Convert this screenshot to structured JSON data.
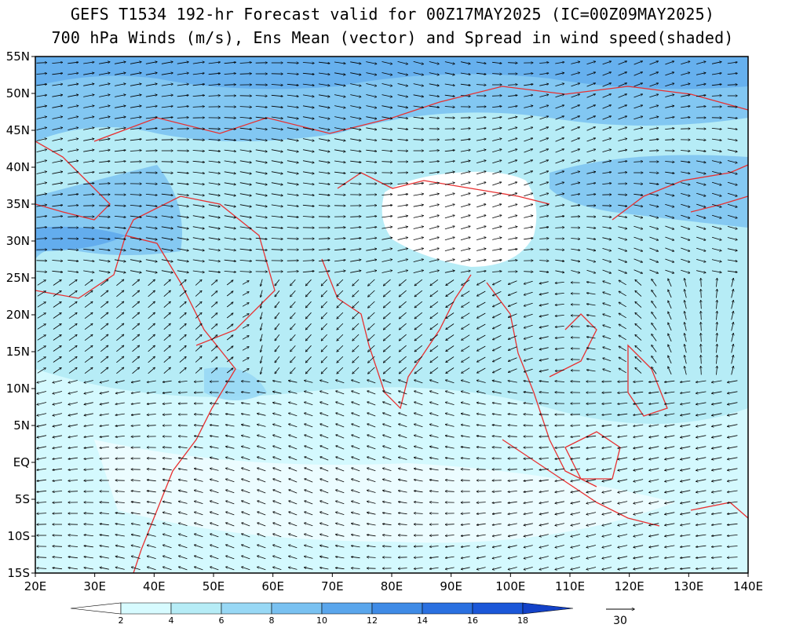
{
  "title": {
    "line1": "GEFS T1534 192-hr Forecast valid for 00Z17MAY2025 (IC=00Z09MAY2025)",
    "line2": "700 hPa Winds (m/s), Ens Mean (vector) and Spread in wind speed(shaded)"
  },
  "axes": {
    "lat_labels": [
      "55N",
      "50N",
      "45N",
      "40N",
      "35N",
      "30N",
      "25N",
      "20N",
      "15N",
      "10N",
      "5N",
      "EQ",
      "5S",
      "10S",
      "15S"
    ],
    "lon_labels": [
      "20E",
      "30E",
      "40E",
      "50E",
      "60E",
      "70E",
      "80E",
      "90E",
      "100E",
      "110E",
      "120E",
      "130E",
      "140E"
    ]
  },
  "colorbar": {
    "levels": [
      "2",
      "4",
      "6",
      "8",
      "10",
      "12",
      "14",
      "16",
      "18"
    ],
    "colors": [
      "#ffffff",
      "#d7fbff",
      "#b6ecf6",
      "#98d8f5",
      "#79c1f1",
      "#5aa6ec",
      "#3f8be6",
      "#2a70e0",
      "#1b57d8",
      "#1342c8"
    ]
  },
  "reference_vector": {
    "value": "30"
  },
  "colors": {
    "coast": "#e83030",
    "land_high": "#ffffff",
    "base_shade": "#b6ecf6"
  }
}
